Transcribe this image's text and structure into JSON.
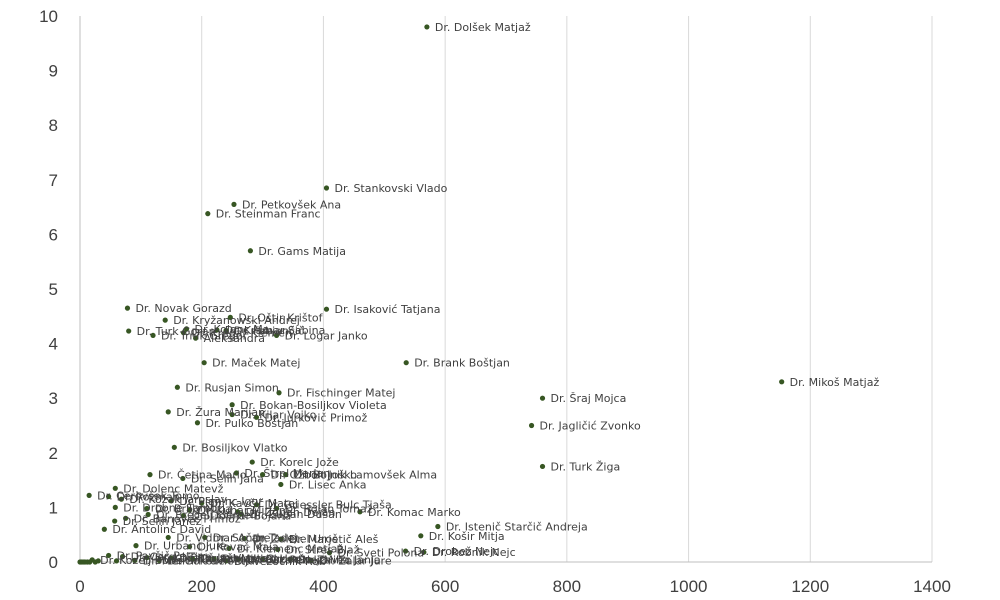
{
  "chart_data": {
    "type": "scatter",
    "title": "",
    "xlabel": "",
    "ylabel": "",
    "xlim": [
      0,
      1400
    ],
    "ylim": [
      0,
      10
    ],
    "xticks": [
      0,
      200,
      400,
      600,
      800,
      1000,
      1200,
      1400
    ],
    "yticks": [
      0,
      1,
      2,
      3,
      4,
      5,
      6,
      7,
      8,
      9,
      10
    ],
    "grid": "vertical",
    "marker_color": "#375623",
    "points": [
      {
        "x": 570,
        "y": 9.8,
        "label": "Dr. Dolšek Matjaž"
      },
      {
        "x": 405,
        "y": 6.85,
        "label": "Dr. Stankovski Vlado"
      },
      {
        "x": 253,
        "y": 6.55,
        "label": "Dr. Petkovšek Ana"
      },
      {
        "x": 210,
        "y": 6.38,
        "label": "Dr. Steinman Franc"
      },
      {
        "x": 280,
        "y": 5.7,
        "label": "Dr. Gams Matija"
      },
      {
        "x": 405,
        "y": 4.63,
        "label": "Dr. Isaković Tatjana"
      },
      {
        "x": 78,
        "y": 4.65,
        "label": "Dr. Novak Gorazd"
      },
      {
        "x": 247,
        "y": 4.48,
        "label": "Dr. Oštir Krištof"
      },
      {
        "x": 140,
        "y": 4.43,
        "label": "Dr. Kryžanowski Andrej"
      },
      {
        "x": 225,
        "y": 4.25,
        "label": "Dr. Kramar Sabina"
      },
      {
        "x": 175,
        "y": 4.27,
        "label": "Dr. Kolenc Ma…"
      },
      {
        "x": 80,
        "y": 4.23,
        "label": "Dr. Turk Goran"
      },
      {
        "x": 170,
        "y": 4.2,
        "label": "Dr. Kregar Klemen"
      },
      {
        "x": 240,
        "y": 4.24,
        "label": "Dr. Fabjančič"
      },
      {
        "x": 120,
        "y": 4.15,
        "label": "Dr. Trnik Gregor"
      },
      {
        "x": 323,
        "y": 4.15,
        "label": "Dr. Logar Janko"
      },
      {
        "x": 190,
        "y": 4.1,
        "label": "Aleksandra"
      },
      {
        "x": 204,
        "y": 3.65,
        "label": "Dr. Maček Matej"
      },
      {
        "x": 536,
        "y": 3.65,
        "label": "Dr. Brank Boštjan"
      },
      {
        "x": 1153,
        "y": 3.3,
        "label": "Dr. Mikoš Matjaž"
      },
      {
        "x": 160,
        "y": 3.2,
        "label": "Dr. Rusjan Simon"
      },
      {
        "x": 327,
        "y": 3.1,
        "label": "Dr. Fischinger Matej"
      },
      {
        "x": 760,
        "y": 3.0,
        "label": "Dr. Šraj Mojca"
      },
      {
        "x": 250,
        "y": 2.88,
        "label": "Dr. Bokan-Bosiljkov Violeta"
      },
      {
        "x": 145,
        "y": 2.75,
        "label": "Dr. Žura Marijan"
      },
      {
        "x": 250,
        "y": 2.7,
        "label": "Dr. Kilar Vojko"
      },
      {
        "x": 290,
        "y": 2.65,
        "label": "Dr. Jurkovič Primož"
      },
      {
        "x": 193,
        "y": 2.55,
        "label": "Dr. Pulko Boštjan"
      },
      {
        "x": 742,
        "y": 2.5,
        "label": "Dr. Jagličić Zvonko"
      },
      {
        "x": 155,
        "y": 2.1,
        "label": "Dr. Bosiljkov Vlatko"
      },
      {
        "x": 283,
        "y": 1.83,
        "label": "Dr. Korelc Jože"
      },
      {
        "x": 760,
        "y": 1.75,
        "label": "Dr. Turk Žiga"
      },
      {
        "x": 115,
        "y": 1.6,
        "label": "Dr. Četina Mario"
      },
      {
        "x": 300,
        "y": 1.6,
        "label": "Dr. Ožbolt Joško"
      },
      {
        "x": 257,
        "y": 1.63,
        "label": "Dr. Štrpl Marjan"
      },
      {
        "x": 338,
        "y": 1.6,
        "label": "Dr. Bojnik Lamovšek Alma"
      },
      {
        "x": 169,
        "y": 1.53,
        "label": "Dr. Selih Jana"
      },
      {
        "x": 330,
        "y": 1.42,
        "label": "Dr. Lisec Anka"
      },
      {
        "x": 58,
        "y": 1.35,
        "label": "Dr. Dolenc Matevž"
      },
      {
        "x": 15,
        "y": 1.22,
        "label": "Dr. Cerovšek Tomo"
      },
      {
        "x": 47,
        "y": 1.2,
        "label": "Dr. Rozman"
      },
      {
        "x": 68,
        "y": 1.15,
        "label": "Dr. Kozak Jaroslav"
      },
      {
        "x": 150,
        "y": 1.12,
        "label": "Dr. Planinc Igor"
      },
      {
        "x": 200,
        "y": 1.08,
        "label": "Dr. Kavčič Matej"
      },
      {
        "x": 290,
        "y": 1.05,
        "label": "Dr. Griessler Bulc Tjaša"
      },
      {
        "x": 58,
        "y": 1.0,
        "label": "Dr. Drobne Samo"
      },
      {
        "x": 110,
        "y": 0.98,
        "label": "Dr. Brilly Mitja"
      },
      {
        "x": 323,
        "y": 0.98,
        "label": "Dr. Rojan Tomaž"
      },
      {
        "x": 180,
        "y": 0.95,
        "label": "Dr. Kuhar Mirjam"
      },
      {
        "x": 259,
        "y": 0.92,
        "label": "Dr. Zupan Dejan"
      },
      {
        "x": 265,
        "y": 0.88,
        "label": "Dr. Zupan Dušan"
      },
      {
        "x": 170,
        "y": 0.85,
        "label": "Dr. Dolinar Bojana"
      },
      {
        "x": 112,
        "y": 0.87,
        "label": "Dr. Brecelj Klemen"
      },
      {
        "x": 460,
        "y": 0.92,
        "label": "Dr. Komac Marko"
      },
      {
        "x": 75,
        "y": 0.8,
        "label": "Dr. Banovec Primož"
      },
      {
        "x": 57,
        "y": 0.75,
        "label": "Dr. Šelih Janez"
      },
      {
        "x": 588,
        "y": 0.65,
        "label": "Dr. Istenič Starčič Andreja"
      },
      {
        "x": 40,
        "y": 0.6,
        "label": "Dr. Antolinc David"
      },
      {
        "x": 560,
        "y": 0.48,
        "label": "Dr. Košir Mitja"
      },
      {
        "x": 145,
        "y": 0.45,
        "label": "Dr. Vidmar Andrej"
      },
      {
        "x": 205,
        "y": 0.45,
        "label": "Dr. Sočan Tadej"
      },
      {
        "x": 270,
        "y": 0.43,
        "label": "Dr. Zaletel Uroš"
      },
      {
        "x": 330,
        "y": 0.42,
        "label": "Dr. Marjetič Aleš"
      },
      {
        "x": 92,
        "y": 0.3,
        "label": "Dr. Urbanc Jure"
      },
      {
        "x": 180,
        "y": 0.28,
        "label": "Dr. Kovač Maja"
      },
      {
        "x": 245,
        "y": 0.25,
        "label": "Dr. Klemenc Matjaž"
      },
      {
        "x": 325,
        "y": 0.23,
        "label": "Dr. Stres Blaž"
      },
      {
        "x": 535,
        "y": 0.2,
        "label": "Dr. Drobež Nejc"
      },
      {
        "x": 410,
        "y": 0.17,
        "label": "Dr. Sveti Polona"
      },
      {
        "x": 565,
        "y": 0.18,
        "label": "Dr. Robnik Nejc"
      },
      {
        "x": 47,
        "y": 0.12,
        "label": "Dr. Pavšič Peter"
      },
      {
        "x": 70,
        "y": 0.1,
        "label": "Dr. Cergol Tina"
      },
      {
        "x": 110,
        "y": 0.08,
        "label": "Dr. Lopatič Jože"
      },
      {
        "x": 150,
        "y": 0.07,
        "label": "Dr. Korun Vlasta"
      },
      {
        "x": 185,
        "y": 0.06,
        "label": "Dr. Schnabl Simon"
      },
      {
        "x": 220,
        "y": 0.06,
        "label": "Dr. Mikeln Uroš"
      },
      {
        "x": 260,
        "y": 0.05,
        "label": "Dr. Bezak Nejc"
      },
      {
        "x": 300,
        "y": 0.05,
        "label": "Dr. Petek Miha"
      },
      {
        "x": 345,
        "y": 0.05,
        "label": "Dr. Zavec Janja"
      },
      {
        "x": 20,
        "y": 0.04,
        "label": "Dr. Kozelj Boris"
      },
      {
        "x": 90,
        "y": 0.03,
        "label": "Dr. Mencin Pavle"
      },
      {
        "x": 130,
        "y": 0.03,
        "label": "Dr. Sokolić Mitja"
      },
      {
        "x": 240,
        "y": 0.02,
        "label": "Dr. Vezočnik Rok"
      },
      {
        "x": 380,
        "y": 0.03,
        "label": "Dr. Zalar Jure"
      },
      {
        "x": 0,
        "y": 0.0,
        "label": ""
      },
      {
        "x": 2,
        "y": 0.0,
        "label": ""
      },
      {
        "x": 5,
        "y": 0.0,
        "label": ""
      },
      {
        "x": 8,
        "y": 0.0,
        "label": ""
      },
      {
        "x": 12,
        "y": 0.0,
        "label": ""
      },
      {
        "x": 16,
        "y": 0.0,
        "label": ""
      },
      {
        "x": 25,
        "y": 0.0,
        "label": ""
      },
      {
        "x": 30,
        "y": 0.02,
        "label": ""
      },
      {
        "x": 60,
        "y": 0.02,
        "label": ""
      }
    ]
  }
}
